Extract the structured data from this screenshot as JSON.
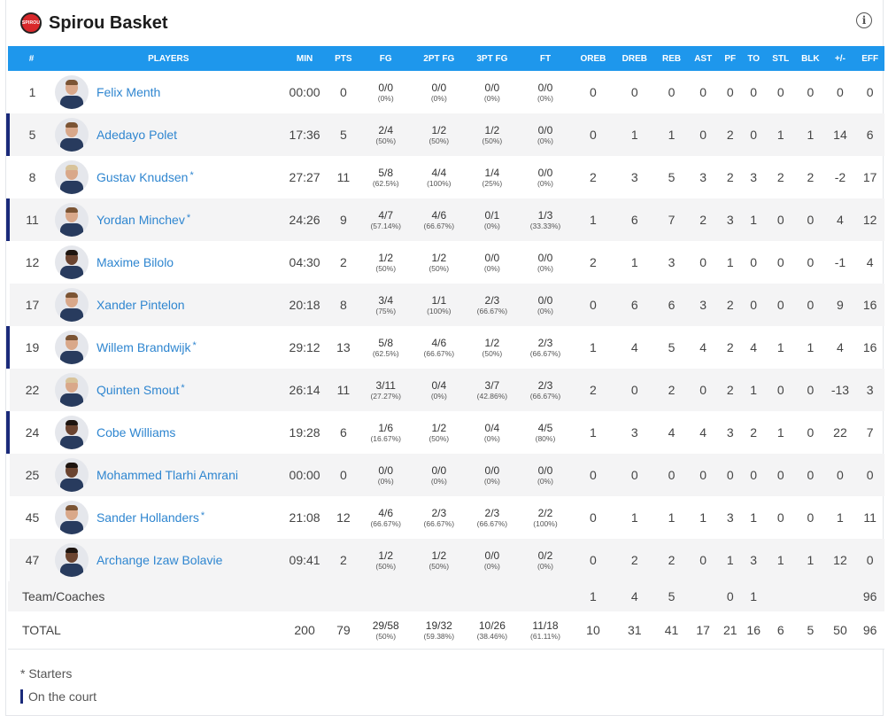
{
  "header": {
    "logo_text": "SPIROU",
    "team_name": "Spirou Basket",
    "info_icon": "info-icon"
  },
  "columns": [
    "#",
    "PLAYERS",
    "MIN",
    "PTS",
    "FG",
    "2PT FG",
    "3PT FG",
    "FT",
    "OREB",
    "DREB",
    "REB",
    "AST",
    "PF",
    "TO",
    "STL",
    "BLK",
    "+/-",
    "EFF"
  ],
  "players": [
    {
      "num": "1",
      "name": "Felix Menth",
      "starter": false,
      "on_court": false,
      "min": "00:00",
      "pts": "0",
      "fg": "0/0",
      "fg_pct": "(0%)",
      "fg2": "0/0",
      "fg2_pct": "(0%)",
      "fg3": "0/0",
      "fg3_pct": "(0%)",
      "ft": "0/0",
      "ft_pct": "(0%)",
      "oreb": "0",
      "dreb": "0",
      "reb": "0",
      "ast": "0",
      "pf": "0",
      "to": "0",
      "stl": "0",
      "blk": "0",
      "pm": "0",
      "eff": "0",
      "look": ""
    },
    {
      "num": "5",
      "name": "Adedayo Polet",
      "starter": false,
      "on_court": true,
      "min": "17:36",
      "pts": "5",
      "fg": "2/4",
      "fg_pct": "(50%)",
      "fg2": "1/2",
      "fg2_pct": "(50%)",
      "fg3": "1/2",
      "fg3_pct": "(50%)",
      "ft": "0/0",
      "ft_pct": "(0%)",
      "oreb": "0",
      "dreb": "1",
      "reb": "1",
      "ast": "0",
      "pf": "2",
      "to": "0",
      "stl": "1",
      "blk": "1",
      "pm": "14",
      "eff": "6",
      "look": ""
    },
    {
      "num": "8",
      "name": "Gustav Knudsen",
      "starter": true,
      "on_court": false,
      "min": "27:27",
      "pts": "11",
      "fg": "5/8",
      "fg_pct": "(62.5%)",
      "fg2": "4/4",
      "fg2_pct": "(100%)",
      "fg3": "1/4",
      "fg3_pct": "(25%)",
      "ft": "0/0",
      "ft_pct": "(0%)",
      "oreb": "2",
      "dreb": "3",
      "reb": "5",
      "ast": "3",
      "pf": "2",
      "to": "3",
      "stl": "2",
      "blk": "2",
      "pm": "-2",
      "eff": "17",
      "look": "blond"
    },
    {
      "num": "11",
      "name": "Yordan Minchev",
      "starter": true,
      "on_court": true,
      "min": "24:26",
      "pts": "9",
      "fg": "4/7",
      "fg_pct": "(57.14%)",
      "fg2": "4/6",
      "fg2_pct": "(66.67%)",
      "fg3": "0/1",
      "fg3_pct": "(0%)",
      "ft": "1/3",
      "ft_pct": "(33.33%)",
      "oreb": "1",
      "dreb": "6",
      "reb": "7",
      "ast": "2",
      "pf": "3",
      "to": "1",
      "stl": "0",
      "blk": "0",
      "pm": "4",
      "eff": "12",
      "look": ""
    },
    {
      "num": "12",
      "name": "Maxime Bilolo",
      "starter": false,
      "on_court": false,
      "min": "04:30",
      "pts": "2",
      "fg": "1/2",
      "fg_pct": "(50%)",
      "fg2": "1/2",
      "fg2_pct": "(50%)",
      "fg3": "0/0",
      "fg3_pct": "(0%)",
      "ft": "0/0",
      "ft_pct": "(0%)",
      "oreb": "2",
      "dreb": "1",
      "reb": "3",
      "ast": "0",
      "pf": "1",
      "to": "0",
      "stl": "0",
      "blk": "0",
      "pm": "-1",
      "eff": "4",
      "look": "dark"
    },
    {
      "num": "17",
      "name": "Xander Pintelon",
      "starter": false,
      "on_court": false,
      "min": "20:18",
      "pts": "8",
      "fg": "3/4",
      "fg_pct": "(75%)",
      "fg2": "1/1",
      "fg2_pct": "(100%)",
      "fg3": "2/3",
      "fg3_pct": "(66.67%)",
      "ft": "0/0",
      "ft_pct": "(0%)",
      "oreb": "0",
      "dreb": "6",
      "reb": "6",
      "ast": "3",
      "pf": "2",
      "to": "0",
      "stl": "0",
      "blk": "0",
      "pm": "9",
      "eff": "16",
      "look": ""
    },
    {
      "num": "19",
      "name": "Willem Brandwijk",
      "starter": true,
      "on_court": true,
      "min": "29:12",
      "pts": "13",
      "fg": "5/8",
      "fg_pct": "(62.5%)",
      "fg2": "4/6",
      "fg2_pct": "(66.67%)",
      "fg3": "1/2",
      "fg3_pct": "(50%)",
      "ft": "2/3",
      "ft_pct": "(66.67%)",
      "oreb": "1",
      "dreb": "4",
      "reb": "5",
      "ast": "4",
      "pf": "2",
      "to": "4",
      "stl": "1",
      "blk": "1",
      "pm": "4",
      "eff": "16",
      "look": ""
    },
    {
      "num": "22",
      "name": "Quinten Smout",
      "starter": true,
      "on_court": false,
      "min": "26:14",
      "pts": "11",
      "fg": "3/11",
      "fg_pct": "(27.27%)",
      "fg2": "0/4",
      "fg2_pct": "(0%)",
      "fg3": "3/7",
      "fg3_pct": "(42.86%)",
      "ft": "2/3",
      "ft_pct": "(66.67%)",
      "oreb": "2",
      "dreb": "0",
      "reb": "2",
      "ast": "0",
      "pf": "2",
      "to": "1",
      "stl": "0",
      "blk": "0",
      "pm": "-13",
      "eff": "3",
      "look": "blond"
    },
    {
      "num": "24",
      "name": "Cobe Williams",
      "starter": false,
      "on_court": true,
      "min": "19:28",
      "pts": "6",
      "fg": "1/6",
      "fg_pct": "(16.67%)",
      "fg2": "1/2",
      "fg2_pct": "(50%)",
      "fg3": "0/4",
      "fg3_pct": "(0%)",
      "ft": "4/5",
      "ft_pct": "(80%)",
      "oreb": "1",
      "dreb": "3",
      "reb": "4",
      "ast": "4",
      "pf": "3",
      "to": "2",
      "stl": "1",
      "blk": "0",
      "pm": "22",
      "eff": "7",
      "look": "dark"
    },
    {
      "num": "25",
      "name": "Mohammed Tlarhi Amrani",
      "starter": false,
      "on_court": false,
      "min": "00:00",
      "pts": "0",
      "fg": "0/0",
      "fg_pct": "(0%)",
      "fg2": "0/0",
      "fg2_pct": "(0%)",
      "fg3": "0/0",
      "fg3_pct": "(0%)",
      "ft": "0/0",
      "ft_pct": "(0%)",
      "oreb": "0",
      "dreb": "0",
      "reb": "0",
      "ast": "0",
      "pf": "0",
      "to": "0",
      "stl": "0",
      "blk": "0",
      "pm": "0",
      "eff": "0",
      "look": "dark"
    },
    {
      "num": "45",
      "name": "Sander Hollanders",
      "starter": true,
      "on_court": false,
      "min": "21:08",
      "pts": "12",
      "fg": "4/6",
      "fg_pct": "(66.67%)",
      "fg2": "2/3",
      "fg2_pct": "(66.67%)",
      "fg3": "2/3",
      "fg3_pct": "(66.67%)",
      "ft": "2/2",
      "ft_pct": "(100%)",
      "oreb": "0",
      "dreb": "1",
      "reb": "1",
      "ast": "1",
      "pf": "3",
      "to": "1",
      "stl": "0",
      "blk": "0",
      "pm": "1",
      "eff": "11",
      "look": ""
    },
    {
      "num": "47",
      "name": "Archange Izaw Bolavie",
      "starter": false,
      "on_court": false,
      "min": "09:41",
      "pts": "2",
      "fg": "1/2",
      "fg_pct": "(50%)",
      "fg2": "1/2",
      "fg2_pct": "(50%)",
      "fg3": "0/0",
      "fg3_pct": "(0%)",
      "ft": "0/2",
      "ft_pct": "(0%)",
      "oreb": "0",
      "dreb": "2",
      "reb": "2",
      "ast": "0",
      "pf": "1",
      "to": "3",
      "stl": "1",
      "blk": "1",
      "pm": "12",
      "eff": "0",
      "look": "dark"
    }
  ],
  "team_row": {
    "label": "Team/Coaches",
    "oreb": "1",
    "dreb": "4",
    "reb": "5",
    "ast": "",
    "pf": "0",
    "to": "1",
    "stl": "",
    "blk": "",
    "pm": "",
    "eff": "96"
  },
  "total_row": {
    "label": "TOTAL",
    "min": "200",
    "pts": "79",
    "fg": "29/58",
    "fg_pct": "(50%)",
    "fg2": "19/32",
    "fg2_pct": "(59.38%)",
    "fg3": "10/26",
    "fg3_pct": "(38.46%)",
    "ft": "11/18",
    "ft_pct": "(61.11%)",
    "oreb": "10",
    "dreb": "31",
    "reb": "41",
    "ast": "17",
    "pf": "21",
    "to": "16",
    "stl": "6",
    "blk": "5",
    "pm": "50",
    "eff": "96"
  },
  "legend": {
    "starters": "* Starters",
    "on_court": "On the court"
  },
  "colors": {
    "header_bg": "#1e97ec",
    "on_court_bar": "#1a2a7a",
    "link": "#2f86d0",
    "logo_red": "#d8282b"
  }
}
